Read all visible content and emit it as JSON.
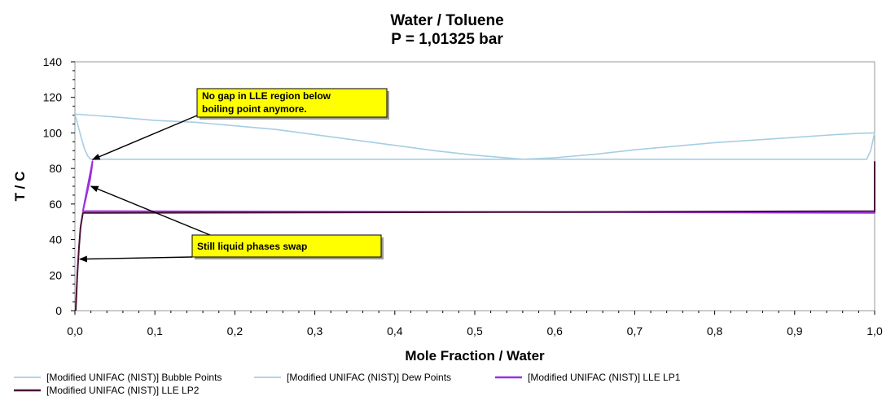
{
  "chart_data": {
    "type": "line",
    "title": "Water / Toluene",
    "subtitle": "P = 1,01325 bar",
    "xlabel": "Mole Fraction / Water",
    "ylabel": "T / C",
    "xlim": [
      0,
      1
    ],
    "ylim": [
      0,
      140
    ],
    "x_ticks": [
      "0,0",
      "0,1",
      "0,2",
      "0,3",
      "0,4",
      "0,5",
      "0,6",
      "0,7",
      "0,8",
      "0,9",
      "1,0"
    ],
    "y_ticks": [
      "0",
      "20",
      "40",
      "60",
      "80",
      "100",
      "120",
      "140"
    ],
    "x_tick_values": [
      0,
      0.1,
      0.2,
      0.3,
      0.4,
      0.5,
      0.6,
      0.7,
      0.8,
      0.9,
      1.0
    ],
    "y_tick_values": [
      0,
      20,
      40,
      60,
      80,
      100,
      120,
      140
    ],
    "grid": false,
    "series": [
      {
        "name": "[Modified UNIFAC (NIST)] Bubble Points",
        "color": "#a6cee3",
        "points": [
          [
            0.0,
            110.6
          ],
          [
            0.004,
            104
          ],
          [
            0.008,
            97
          ],
          [
            0.012,
            91
          ],
          [
            0.016,
            87
          ],
          [
            0.02,
            85.2
          ],
          [
            0.1,
            85.2
          ],
          [
            0.3,
            85.2
          ],
          [
            0.5,
            85.2
          ],
          [
            0.7,
            85.2
          ],
          [
            0.9,
            85.2
          ],
          [
            0.99,
            85.2
          ],
          [
            0.995,
            90
          ],
          [
            1.0,
            100
          ]
        ]
      },
      {
        "name": "[Modified UNIFAC (NIST)] Dew Points",
        "color": "#a6cee3",
        "points": [
          [
            0.0,
            110.6
          ],
          [
            0.05,
            109
          ],
          [
            0.1,
            107
          ],
          [
            0.15,
            106
          ],
          [
            0.2,
            104
          ],
          [
            0.25,
            102
          ],
          [
            0.3,
            99
          ],
          [
            0.35,
            96
          ],
          [
            0.4,
            93
          ],
          [
            0.45,
            90
          ],
          [
            0.5,
            87.5
          ],
          [
            0.56,
            85.2
          ],
          [
            0.6,
            86
          ],
          [
            0.65,
            88
          ],
          [
            0.7,
            90.5
          ],
          [
            0.75,
            92.5
          ],
          [
            0.8,
            94.5
          ],
          [
            0.85,
            96
          ],
          [
            0.9,
            97.5
          ],
          [
            0.95,
            99
          ],
          [
            0.98,
            99.8
          ],
          [
            1.0,
            100
          ]
        ]
      },
      {
        "name": "[Modified UNIFAC (NIST)] LLE LP1",
        "color": "#9b30e0",
        "points": [
          [
            0.01,
            56
          ],
          [
            0.013,
            62
          ],
          [
            0.016,
            68
          ],
          [
            0.019,
            74
          ],
          [
            0.021,
            80
          ],
          [
            0.022,
            84
          ],
          [
            0.01,
            56
          ],
          [
            0.3,
            55.7
          ],
          [
            0.6,
            55.5
          ],
          [
            1.0,
            55
          ],
          [
            1.0,
            84
          ]
        ]
      },
      {
        "name": "[Modified UNIFAC (NIST)] LLE LP2",
        "color": "#4a1036",
        "points": [
          [
            0.001,
            0
          ],
          [
            0.003,
            20
          ],
          [
            0.005,
            35
          ],
          [
            0.007,
            47
          ],
          [
            0.01,
            55
          ],
          [
            0.3,
            55.2
          ],
          [
            0.6,
            55.5
          ],
          [
            1.0,
            56
          ],
          [
            1.0,
            84
          ]
        ]
      }
    ],
    "annotations": [
      {
        "lines": [
          "No gap in LLE region below",
          "boiling point anymore."
        ],
        "targets": [
          [
            0.022,
            85
          ]
        ]
      },
      {
        "lines": [
          "Still liquid phases swap"
        ],
        "targets": [
          [
            0.02,
            70
          ],
          [
            0.006,
            29
          ]
        ]
      }
    ]
  }
}
